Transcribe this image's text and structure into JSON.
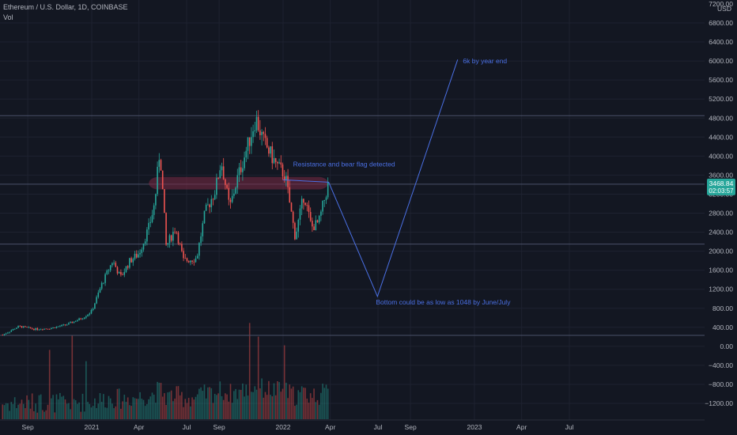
{
  "header": {
    "symbol_line": "Ethereum / U.S. Dollar, 1D, COINBASE",
    "vol_label": "Vol"
  },
  "colors": {
    "background": "#131722",
    "grid": "#1e2230",
    "up": "#26a69a",
    "down": "#ef5350",
    "annotation": "#4a6fe3",
    "resistance_zone": "#7a2a44",
    "price_tag": "#26a69a"
  },
  "chart_data": {
    "type": "candlestick",
    "title": "Ethereum / U.S. Dollar, 1D, COINBASE",
    "currency_label": "USD",
    "y_axis_top_tick": "7200.00",
    "ylim": [
      -1400,
      7250
    ],
    "y_ticks": [
      6800,
      6400,
      6000,
      5600,
      5200,
      4800,
      4400,
      4000,
      3600,
      3200,
      2800,
      2400,
      2000,
      1600,
      1200,
      800,
      400,
      0,
      -400,
      -800,
      -1200
    ],
    "y_tick_labels": [
      "6800.00",
      "6400.00",
      "6000.00",
      "5600.00",
      "5200.00",
      "4800.00",
      "4400.00",
      "4000.00",
      "3600.00",
      "3200.00",
      "2800.00",
      "2400.00",
      "2000.00",
      "1600.00",
      "1200.00",
      "800.00",
      "400.00",
      "0.00",
      "−400.00",
      "−800.00",
      "−1200.00"
    ],
    "x_ticks": [
      {
        "label": "Sep",
        "date": "2020-09-01"
      },
      {
        "label": "2021",
        "date": "2021-01-01"
      },
      {
        "label": "Apr",
        "date": "2021-04-01"
      },
      {
        "label": "Jul",
        "date": "2021-07-01"
      },
      {
        "label": "Sep",
        "date": "2021-09-01"
      },
      {
        "label": "2022",
        "date": "2022-01-01"
      },
      {
        "label": "Apr",
        "date": "2022-04-01"
      },
      {
        "label": "Jul",
        "date": "2022-07-01"
      },
      {
        "label": "Sep",
        "date": "2022-09-01"
      },
      {
        "label": "2023",
        "date": "2023-01-01"
      },
      {
        "label": "Apr",
        "date": "2023-04-01"
      },
      {
        "label": "Jul",
        "date": "2023-07-01"
      }
    ],
    "price_path": [
      [
        "2020-07-15",
        240
      ],
      [
        "2020-08-15",
        420
      ],
      [
        "2020-09-15",
        360
      ],
      [
        "2020-10-15",
        380
      ],
      [
        "2020-11-15",
        460
      ],
      [
        "2020-12-15",
        600
      ],
      [
        "2021-01-01",
        740
      ],
      [
        "2021-01-20",
        1300
      ],
      [
        "2021-02-10",
        1800
      ],
      [
        "2021-02-25",
        1450
      ],
      [
        "2021-03-15",
        1800
      ],
      [
        "2021-04-01",
        1950
      ],
      [
        "2021-04-20",
        2500
      ],
      [
        "2021-05-01",
        3000
      ],
      [
        "2021-05-11",
        4170
      ],
      [
        "2021-05-23",
        2100
      ],
      [
        "2021-06-10",
        2500
      ],
      [
        "2021-06-25",
        1800
      ],
      [
        "2021-07-20",
        1850
      ],
      [
        "2021-08-05",
        2800
      ],
      [
        "2021-08-25",
        3300
      ],
      [
        "2021-09-05",
        3900
      ],
      [
        "2021-09-21",
        2900
      ],
      [
        "2021-10-05",
        3500
      ],
      [
        "2021-10-25",
        4200
      ],
      [
        "2021-11-10",
        4800
      ],
      [
        "2021-11-25",
        4300
      ],
      [
        "2021-12-05",
        4100
      ],
      [
        "2021-12-20",
        3800
      ],
      [
        "2022-01-05",
        3600
      ],
      [
        "2022-01-24",
        2300
      ],
      [
        "2022-02-10",
        3200
      ],
      [
        "2022-02-24",
        2500
      ],
      [
        "2022-03-10",
        2600
      ],
      [
        "2022-03-29",
        3450
      ]
    ],
    "volume_scale_note": "volume histogram in lower pane",
    "last_price": "3468.84",
    "countdown": "02:03:57",
    "horizontal_lines": [
      4850,
      3410,
      2150,
      230
    ],
    "resistance_zone": {
      "y_low": 3300,
      "y_high": 3560,
      "x_start": "2021-04-20",
      "x_end": "2022-03-28"
    },
    "projection": [
      [
        "2022-01-01",
        3500
      ],
      [
        "2022-03-29",
        3450
      ],
      [
        "2022-06-30",
        1048
      ],
      [
        "2022-11-30",
        6030
      ]
    ],
    "annotations": [
      {
        "text": "Resistance and bear flag detected",
        "date": "2022-01-20",
        "value": 3780
      },
      {
        "text": "6k by year end",
        "date": "2022-12-10",
        "value": 5950
      },
      {
        "text": "Bottom could be as low as 1048 by June/July",
        "date": "2022-06-27",
        "value": 880
      }
    ]
  }
}
